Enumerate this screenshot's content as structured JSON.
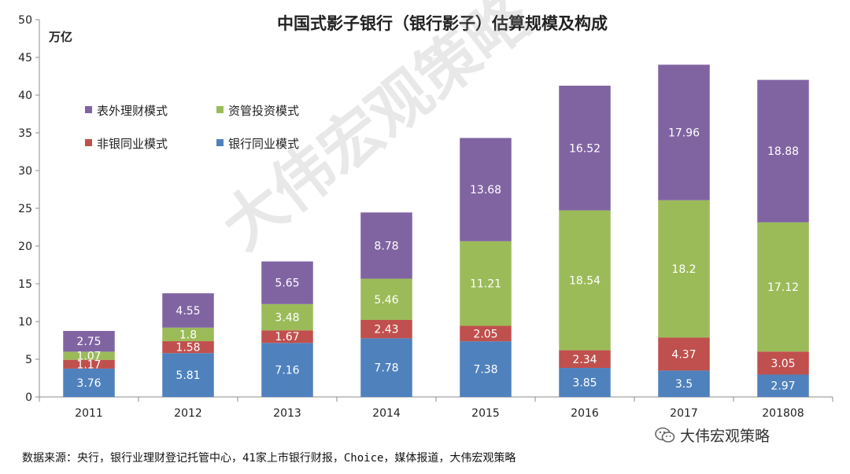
{
  "chart_data": {
    "type": "bar",
    "stacked": true,
    "title": "中国式影子银行（银行影子）估算规模及构成",
    "ylabel": "万亿",
    "ylim": [
      0,
      50
    ],
    "yticks": [
      0,
      5,
      10,
      15,
      20,
      25,
      30,
      35,
      40,
      45,
      50
    ],
    "categories": [
      "2011",
      "2012",
      "2013",
      "2014",
      "2015",
      "2016",
      "2017",
      "201808"
    ],
    "series": [
      {
        "name": "银行同业模式",
        "color": "#4F81BD",
        "values": [
          3.76,
          5.81,
          7.16,
          7.78,
          7.38,
          3.85,
          3.5,
          2.97
        ]
      },
      {
        "name": "非银同业模式",
        "color": "#C0504D",
        "values": [
          1.17,
          1.58,
          1.67,
          2.43,
          2.05,
          2.34,
          4.37,
          3.05
        ]
      },
      {
        "name": "资管投资模式",
        "color": "#9BBB59",
        "values": [
          1.07,
          1.8,
          3.48,
          5.46,
          11.21,
          18.54,
          18.2,
          17.12
        ]
      },
      {
        "name": "表外理财模式",
        "color": "#8064A2",
        "values": [
          2.75,
          4.55,
          5.65,
          8.78,
          13.68,
          16.52,
          17.96,
          18.88
        ]
      }
    ],
    "legend_order": [
      "表外理财模式",
      "资管投资模式",
      "非银同业模式",
      "银行同业模式"
    ],
    "legend_placement": "top-left",
    "grid": false
  },
  "footer": {
    "source": "数据来源：央行，银行业理财登记托管中心，41家上市银行财报，Choice，媒体报道，大伟宏观策略",
    "brand": "大伟宏观策略",
    "brand_icon": "wechat-icon"
  },
  "watermark": "大伟宏观策略"
}
